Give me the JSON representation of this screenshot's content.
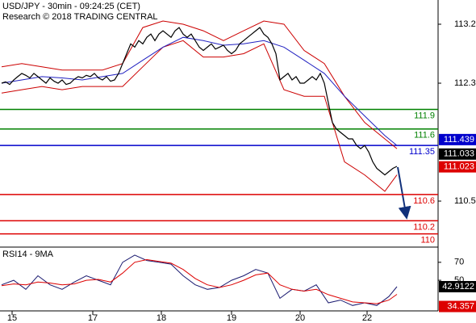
{
  "chart_data": {
    "type": "line",
    "title": "USD/JPY - 30min - 09:24:25 (CET)",
    "subtitle": "Research © 2018 TRADING CENTRAL",
    "xlim": [
      -0.4,
      108.2
    ],
    "xticks": [
      {
        "value": 2.6,
        "label": "15"
      },
      {
        "value": 22.6,
        "label": "17"
      },
      {
        "value": 39.6,
        "label": "18"
      },
      {
        "value": 57,
        "label": "19"
      },
      {
        "value": 74,
        "label": "20"
      },
      {
        "value": 90.6,
        "label": "22"
      }
    ],
    "ylim": [
      109.81,
      113.57
    ],
    "yticks": [
      113.2,
      112.3,
      110.5
    ],
    "price": {
      "color": "#000000",
      "values": [
        112.3,
        112.32,
        112.28,
        112.35,
        112.4,
        112.45,
        112.42,
        112.38,
        112.45,
        112.4,
        112.35,
        112.3,
        112.38,
        112.33,
        112.3,
        112.35,
        112.28,
        112.3,
        112.36,
        112.4,
        112.38,
        112.42,
        112.4,
        112.45,
        112.38,
        112.35,
        112.4,
        112.33,
        112.35,
        112.45,
        112.6,
        112.75,
        112.9,
        112.85,
        112.95,
        112.9,
        113.0,
        113.05,
        112.95,
        113.05,
        113.1,
        113.05,
        113.0,
        113.1,
        113.15,
        113.05,
        113.0,
        113.05,
        112.95,
        112.85,
        112.8,
        112.85,
        112.9,
        112.82,
        112.85,
        112.88,
        112.8,
        112.75,
        112.8,
        112.9,
        112.95,
        113.0,
        113.05,
        113.1,
        113.15,
        113.05,
        113.0,
        112.9,
        112.75,
        112.35,
        112.4,
        112.45,
        112.35,
        112.4,
        112.3,
        112.3,
        112.35,
        112.4,
        112.35,
        112.45,
        112.3,
        112.0,
        111.7,
        111.6,
        111.55,
        111.5,
        111.45,
        111.45,
        111.35,
        111.3,
        111.35,
        111.25,
        111.1,
        111.0,
        110.95,
        110.9,
        110.95,
        111.0,
        111.03
      ]
    },
    "bands": [
      {
        "color": "#cc0000",
        "x": [
          0,
          5,
          10,
          15,
          20,
          25,
          30,
          35,
          40,
          45,
          50,
          55,
          60,
          65,
          70,
          75,
          80,
          85,
          90,
          95,
          98
        ],
        "values": [
          112.55,
          112.6,
          112.55,
          112.5,
          112.5,
          112.5,
          112.6,
          113.15,
          113.25,
          113.2,
          113.1,
          112.95,
          113.1,
          113.25,
          113.2,
          112.8,
          112.6,
          112.1,
          111.7,
          111.45,
          111.3
        ]
      },
      {
        "color": "#cc0000",
        "x": [
          0,
          5,
          10,
          15,
          20,
          25,
          30,
          35,
          40,
          45,
          50,
          55,
          60,
          65,
          70,
          75,
          80,
          85,
          90,
          95,
          98
        ],
        "values": [
          112.15,
          112.2,
          112.25,
          112.2,
          112.25,
          112.25,
          112.25,
          112.55,
          112.85,
          112.95,
          112.7,
          112.7,
          112.75,
          112.9,
          112.2,
          112.1,
          112.1,
          111.1,
          110.9,
          110.65,
          110.9
        ]
      },
      {
        "color": "#2020c0",
        "x": [
          0,
          5,
          10,
          15,
          20,
          25,
          30,
          35,
          40,
          45,
          50,
          55,
          60,
          65,
          70,
          75,
          80,
          85,
          90,
          95,
          98
        ],
        "values": [
          112.3,
          112.35,
          112.4,
          112.38,
          112.35,
          112.4,
          112.45,
          112.65,
          112.85,
          113.0,
          112.95,
          112.88,
          112.9,
          112.95,
          112.85,
          112.65,
          112.45,
          112.1,
          111.8,
          111.5,
          111.35
        ]
      }
    ],
    "levels": [
      {
        "value": 111.9,
        "color": "#008000"
      },
      {
        "value": 111.6,
        "color": "#008000"
      },
      {
        "value": 111.35,
        "color": "#0000cc"
      },
      {
        "value": 110.6,
        "color": "#dd0000"
      },
      {
        "value": 110.2,
        "color": "#dd0000"
      },
      {
        "value": 110,
        "color": "#dd0000"
      }
    ],
    "price_labels": [
      {
        "value": 111.439,
        "color": "#0000cc"
      },
      {
        "value": 111.033,
        "color": "#000000"
      },
      {
        "value": 111.023,
        "color": "#dd0000"
      }
    ],
    "rsi": {
      "title": "RSI14 - 9MA",
      "ylim": [
        16,
        86
      ],
      "yticks": [
        70,
        50
      ],
      "series": [
        {
          "color": "#1a1a70",
          "x": [
            0,
            3,
            6,
            9,
            12,
            15,
            18,
            21,
            24,
            27,
            30,
            33,
            36,
            39,
            42,
            45,
            48,
            51,
            54,
            57,
            60,
            63,
            66,
            69,
            72,
            75,
            78,
            81,
            84,
            87,
            90,
            93,
            96,
            98
          ],
          "values": [
            45,
            50,
            40,
            55,
            45,
            40,
            48,
            55,
            50,
            45,
            70,
            78,
            72,
            70,
            68,
            55,
            45,
            40,
            42,
            50,
            55,
            62,
            58,
            30,
            40,
            38,
            45,
            25,
            28,
            22,
            25,
            22,
            32,
            42.9122
          ]
        },
        {
          "color": "#dd0000",
          "x": [
            0,
            3,
            6,
            9,
            12,
            15,
            18,
            21,
            24,
            27,
            30,
            33,
            36,
            39,
            42,
            45,
            48,
            51,
            54,
            57,
            60,
            63,
            66,
            69,
            72,
            75,
            78,
            81,
            84,
            87,
            90,
            93,
            96,
            98
          ],
          "values": [
            44,
            46,
            45,
            48,
            47,
            45,
            46,
            50,
            51,
            48,
            58,
            70,
            73,
            71,
            69,
            62,
            52,
            45,
            42,
            45,
            50,
            56,
            58,
            45,
            40,
            38,
            40,
            34,
            30,
            26,
            25,
            24,
            28,
            34.357
          ]
        }
      ],
      "labels": [
        {
          "value": 42.9122,
          "color": "#000000"
        },
        {
          "value": 34.357,
          "color": "#dd0000"
        }
      ]
    }
  }
}
